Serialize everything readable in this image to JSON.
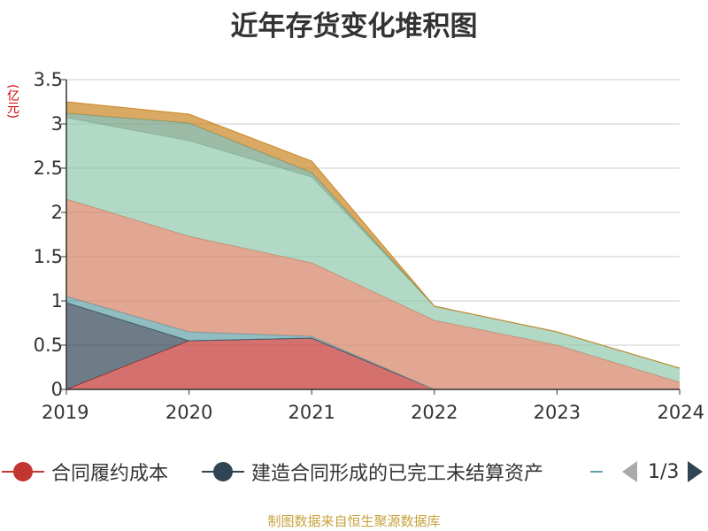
{
  "title": "近年存货变化堆积图",
  "unit_label": "(亿元)",
  "source": "制图数据来自恒生聚源数据库",
  "legend": {
    "items": [
      {
        "name": "合同履约成本",
        "color": "#c23531"
      },
      {
        "name": "建造合同形成的已完工未结算资产",
        "color": "#2f4554"
      }
    ],
    "page_text": "1/3"
  },
  "chart_data": {
    "type": "area",
    "stacked": true,
    "title": "近年存货变化堆积图",
    "ylabel": "(亿元)",
    "x": [
      "2019",
      "2020",
      "2021",
      "2022",
      "2023",
      "2024"
    ],
    "ylim": [
      0,
      3.5
    ],
    "yticks": [
      0,
      0.5,
      1,
      1.5,
      2,
      2.5,
      3,
      3.5
    ],
    "grid": true,
    "legend_position": "bottom",
    "series": [
      {
        "name": "合同履约成本",
        "color": "#c23531",
        "values": [
          0,
          0.55,
          0.58,
          0,
          0,
          0
        ]
      },
      {
        "name": "建造合同形成的已完工未结算资产",
        "color": "#2f4554",
        "values": [
          0.98,
          0,
          0,
          0,
          0,
          0
        ]
      },
      {
        "color": "#61a0a8",
        "values": [
          0.07,
          0.1,
          0.02,
          0,
          0,
          0
        ]
      },
      {
        "color": "#d48265",
        "values": [
          1.1,
          1.08,
          0.83,
          0.78,
          0.5,
          0.08
        ]
      },
      {
        "color": "#91c7ae",
        "values": [
          0.92,
          1.08,
          0.97,
          0.16,
          0.15,
          0.16
        ]
      },
      {
        "color": "#749f83",
        "values": [
          0.05,
          0.2,
          0.05,
          0,
          0,
          0
        ]
      },
      {
        "color": "#ca8622",
        "values": [
          0.13,
          0.1,
          0.13,
          0,
          0,
          0
        ]
      }
    ]
  }
}
